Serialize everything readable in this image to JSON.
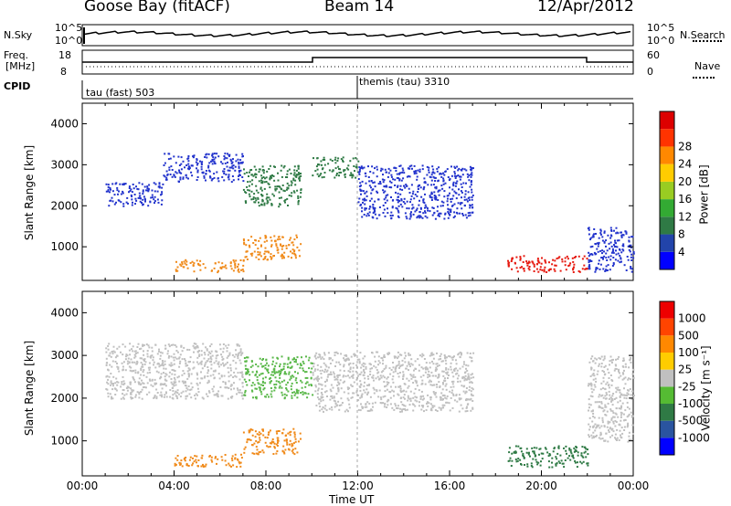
{
  "header": {
    "station": "Goose Bay (fitACF)",
    "beam": "Beam 14",
    "date": "12/Apr/2012"
  },
  "strip_labels": {
    "nsky": "N.Sky",
    "nsky_ticks": [
      "10^5",
      "10^0"
    ],
    "nsearch": "N.Search",
    "nsearch_ticks": [
      "10^5",
      "10^0"
    ],
    "freq": "Freq.",
    "freq_unit": "[MHz]",
    "freq_ticks": [
      "18",
      "8"
    ],
    "nave": "Nave",
    "nave_ticks": [
      "60",
      "0"
    ],
    "cpid": "CPID",
    "cpid_modes": [
      "tau (fast) 503",
      "themis (tau) 3310"
    ]
  },
  "colors": {
    "blue": "#2233cc",
    "darkgreen": "#2f7a45",
    "green": "#5ab84a",
    "yellowgreen": "#a8cc33",
    "orange": "#f08a1a",
    "red": "#e61a10",
    "grey": "#c0c0c0"
  },
  "chart_data": [
    {
      "type": "heatmap",
      "panel": "power",
      "ylabel": "Slant Range [km]",
      "yticks": [
        "1000",
        "2000",
        "3000",
        "4000"
      ],
      "ylim": [
        180,
        4500
      ],
      "xlim": [
        0,
        24
      ],
      "colorbar": {
        "label": "Power [dB]",
        "ticks": [
          "4",
          "8",
          "12",
          "16",
          "20",
          "24",
          "28"
        ],
        "colors": [
          "#0000ff",
          "#2244aa",
          "#2f7a45",
          "#33aa33",
          "#99cc22",
          "#ffcc00",
          "#ff8800",
          "#ff3300",
          "#dd0000"
        ]
      },
      "regions": [
        {
          "t0": 1.0,
          "t1": 3.5,
          "r0": 2000,
          "r1": 2600,
          "level": "blue"
        },
        {
          "t0": 3.5,
          "t1": 7.0,
          "r0": 2600,
          "r1": 3300,
          "level": "blue"
        },
        {
          "t0": 7.0,
          "t1": 9.5,
          "r0": 2000,
          "r1": 3000,
          "level": "darkgreen"
        },
        {
          "t0": 10.0,
          "t1": 12.0,
          "r0": 2700,
          "r1": 3200,
          "level": "darkgreen"
        },
        {
          "t0": 12.0,
          "t1": 17.0,
          "r0": 1700,
          "r1": 3000,
          "level": "blue"
        },
        {
          "t0": 4.0,
          "t1": 7.0,
          "r0": 400,
          "r1": 700,
          "level": "orange"
        },
        {
          "t0": 7.0,
          "t1": 9.5,
          "r0": 700,
          "r1": 1300,
          "level": "orange"
        },
        {
          "t0": 18.5,
          "t1": 22.0,
          "r0": 400,
          "r1": 800,
          "level": "red"
        },
        {
          "t0": 22.0,
          "t1": 24.0,
          "r0": 400,
          "r1": 1500,
          "level": "blue"
        }
      ]
    },
    {
      "type": "heatmap",
      "panel": "velocity",
      "ylabel": "Slant Range [km]",
      "yticks": [
        "1000",
        "2000",
        "3000",
        "4000"
      ],
      "ylim": [
        180,
        4500
      ],
      "xlim": [
        0,
        24
      ],
      "xlabel": "Time UT",
      "xticks": [
        "00:00",
        "04:00",
        "08:00",
        "12:00",
        "16:00",
        "20:00",
        "00:00"
      ],
      "colorbar": {
        "label": "Velocity [m s⁻¹]",
        "ticks": [
          "1000",
          "500",
          "100",
          "25",
          "-25",
          "-100",
          "-500",
          "-1000"
        ],
        "colors": [
          "#0000ff",
          "#2a54a0",
          "#2f7a45",
          "#55bb33",
          "#c0c0c0",
          "#ffcc00",
          "#ff8800",
          "#ff4400",
          "#ee0000"
        ]
      },
      "regions": [
        {
          "t0": 1.0,
          "t1": 7.0,
          "r0": 2000,
          "r1": 3300,
          "level": "grey"
        },
        {
          "t0": 7.0,
          "t1": 10.0,
          "r0": 2000,
          "r1": 3000,
          "level": "green"
        },
        {
          "t0": 10.0,
          "t1": 17.0,
          "r0": 1700,
          "r1": 3100,
          "level": "grey"
        },
        {
          "t0": 4.0,
          "t1": 7.0,
          "r0": 400,
          "r1": 700,
          "level": "orange"
        },
        {
          "t0": 7.0,
          "t1": 9.5,
          "r0": 700,
          "r1": 1300,
          "level": "orange"
        },
        {
          "t0": 18.5,
          "t1": 22.0,
          "r0": 400,
          "r1": 900,
          "level": "darkgreen"
        },
        {
          "t0": 22.0,
          "t1": 24.0,
          "r0": 1000,
          "r1": 3000,
          "level": "grey"
        }
      ]
    }
  ]
}
